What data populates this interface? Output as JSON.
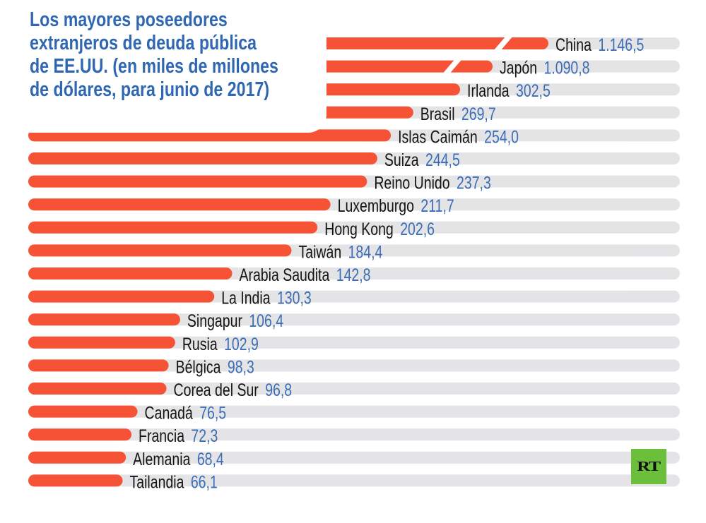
{
  "chart_data": {
    "type": "bar",
    "orientation": "horizontal",
    "title": "Los mayores poseedores extranjeros de deuda pública de EE.UU. (en miles de millones de dólares, para junio de 2017)",
    "title_lines": [
      "Los mayores poseedores",
      "extranjeros de deuda pública",
      "de EE.UU. (en miles de millones",
      "de dólares, para junio de 2017)"
    ],
    "categories": [
      "China",
      "Japón",
      "Irlanda",
      "Brasil",
      "Islas Caimán",
      "Suiza",
      "Reino Unido",
      "Luxemburgo",
      "Hong Kong",
      "Taiwán",
      "Arabia Saudita",
      "La India",
      "Singapur",
      "Rusia",
      "Bélgica",
      "Corea del Sur",
      "Canadá",
      "Francia",
      "Alemania",
      "Tailandia"
    ],
    "values": [
      1146.5,
      1090.8,
      302.5,
      269.7,
      254.0,
      244.5,
      237.3,
      211.7,
      202.6,
      184.4,
      142.8,
      130.3,
      106.4,
      102.9,
      98.3,
      96.8,
      76.5,
      72.3,
      68.4,
      66.1
    ],
    "value_labels": [
      "1.146,5",
      "1.090,8",
      "302,5",
      "269,7",
      "254,0",
      "244,5",
      "237,3",
      "211,7",
      "202,6",
      "184,4",
      "142,8",
      "130,3",
      "106,4",
      "102,9",
      "98,3",
      "96,8",
      "76,5",
      "72,3",
      "68,4",
      "66,1"
    ],
    "broken_bars": [
      "China",
      "Japón"
    ],
    "xlabel": "",
    "ylabel": "",
    "grid": false,
    "legend": "none",
    "colors": {
      "bar": "#f65235",
      "track": "#e4e4e6",
      "label": "#141414",
      "value": "#3a6db5",
      "title": "#2f67b2"
    }
  },
  "logo": {
    "text": "RT",
    "color": "#6cbf3b"
  }
}
